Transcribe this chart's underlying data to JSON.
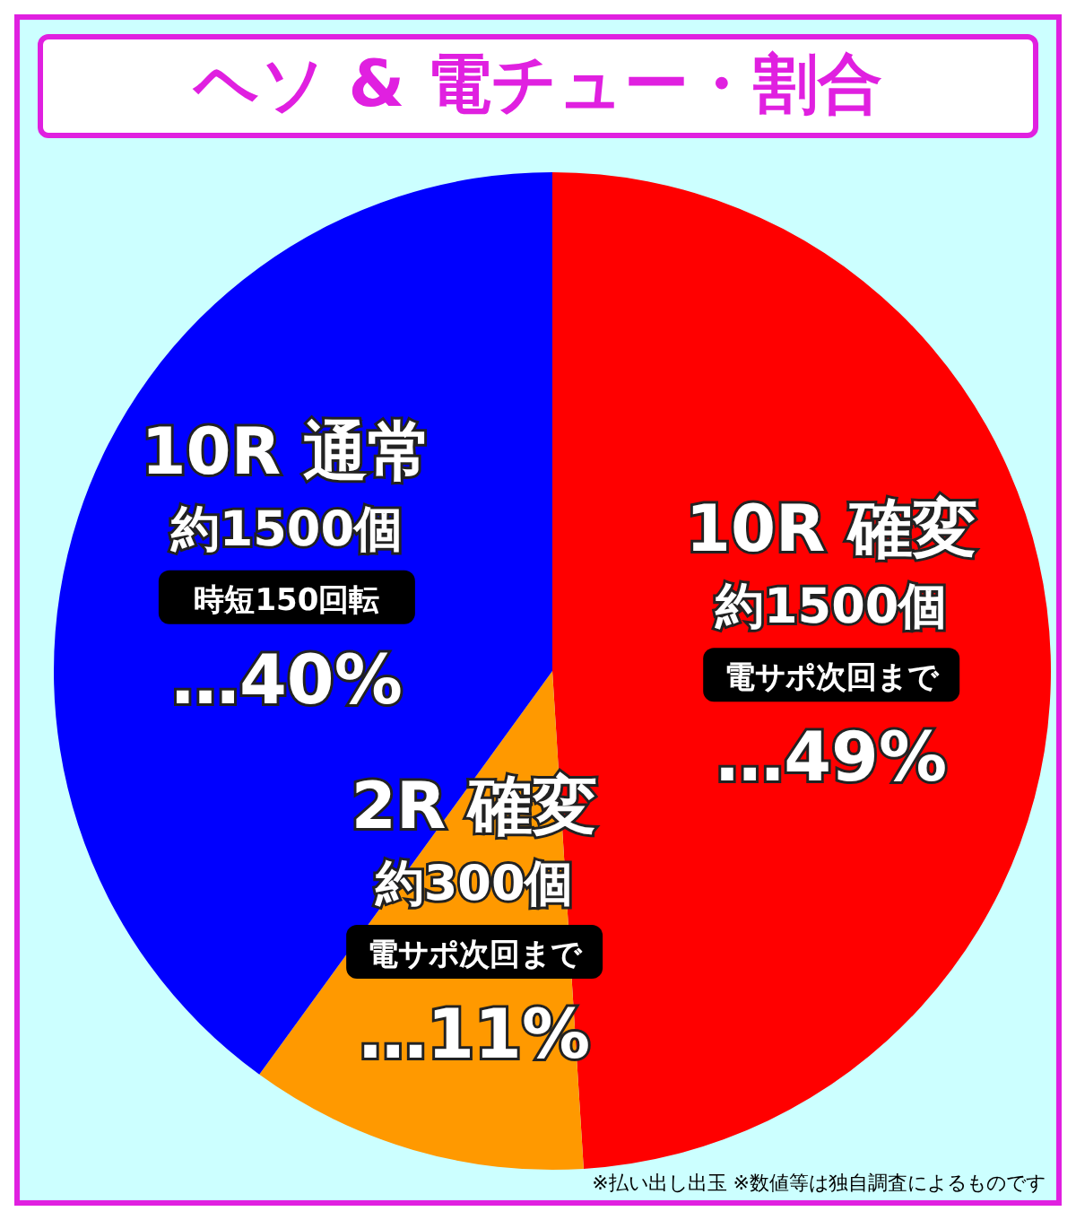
{
  "chart_data": {
    "type": "pie",
    "title": "ヘソ & 電チュー・割合",
    "categories": [
      "10R 確変",
      "2R 確変",
      "10R 通常"
    ],
    "values": [
      49,
      11,
      40
    ],
    "colors": [
      "#ff0000",
      "#ff9900",
      "#0000ff"
    ],
    "value_labels": [
      "…49%",
      "…11%",
      "…40%"
    ],
    "legend": false,
    "annotations": [
      {
        "text": "約1500個",
        "x": "10R 確変"
      },
      {
        "text": "電サポ次回まで",
        "x": "10R 確変"
      },
      {
        "text": "約300個",
        "x": "2R 確変"
      },
      {
        "text": "電サポ次回まで",
        "x": "2R 確変"
      },
      {
        "text": "約1500個",
        "x": "10R 通常"
      },
      {
        "text": "時短150回転",
        "x": "10R 通常"
      },
      "※払い出し出玉 ※数値等は独自調査によるものです"
    ]
  }
}
